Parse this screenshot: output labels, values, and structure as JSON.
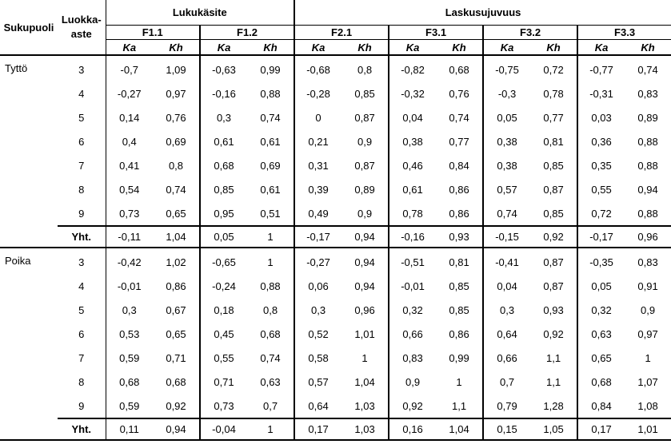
{
  "header": {
    "sukupuoli": "Sukupuoli",
    "luokka_line1": "Luokka-",
    "luokka_line2": "aste",
    "group1": "Lukukäsite",
    "group2": "Laskusujuvuus",
    "factors": [
      "F1.1",
      "F1.2",
      "F2.1",
      "F3.1",
      "F3.2",
      "F3.3"
    ],
    "ka": "Ka",
    "kh": "Kh"
  },
  "groups": [
    {
      "label": "Tyttö",
      "rows": [
        {
          "grade": "3",
          "values": [
            "-0,7",
            "1,09",
            "-0,63",
            "0,99",
            "-0,68",
            "0,8",
            "-0,82",
            "0,68",
            "-0,75",
            "0,72",
            "-0,77",
            "0,74"
          ]
        },
        {
          "grade": "4",
          "values": [
            "-0,27",
            "0,97",
            "-0,16",
            "0,88",
            "-0,28",
            "0,85",
            "-0,32",
            "0,76",
            "-0,3",
            "0,78",
            "-0,31",
            "0,83"
          ]
        },
        {
          "grade": "5",
          "values": [
            "0,14",
            "0,76",
            "0,3",
            "0,74",
            "0",
            "0,87",
            "0,04",
            "0,74",
            "0,05",
            "0,77",
            "0,03",
            "0,89"
          ]
        },
        {
          "grade": "6",
          "values": [
            "0,4",
            "0,69",
            "0,61",
            "0,61",
            "0,21",
            "0,9",
            "0,38",
            "0,77",
            "0,38",
            "0,81",
            "0,36",
            "0,88"
          ]
        },
        {
          "grade": "7",
          "values": [
            "0,41",
            "0,8",
            "0,68",
            "0,69",
            "0,31",
            "0,87",
            "0,46",
            "0,84",
            "0,38",
            "0,85",
            "0,35",
            "0,88"
          ]
        },
        {
          "grade": "8",
          "values": [
            "0,54",
            "0,74",
            "0,85",
            "0,61",
            "0,39",
            "0,89",
            "0,61",
            "0,86",
            "0,57",
            "0,87",
            "0,55",
            "0,94"
          ]
        },
        {
          "grade": "9",
          "values": [
            "0,73",
            "0,65",
            "0,95",
            "0,51",
            "0,49",
            "0,9",
            "0,78",
            "0,86",
            "0,74",
            "0,85",
            "0,72",
            "0,88"
          ]
        }
      ],
      "total": {
        "grade": "Yht.",
        "values": [
          "-0,11",
          "1,04",
          "0,05",
          "1",
          "-0,17",
          "0,94",
          "-0,16",
          "0,93",
          "-0,15",
          "0,92",
          "-0,17",
          "0,96"
        ]
      }
    },
    {
      "label": "Poika",
      "rows": [
        {
          "grade": "3",
          "values": [
            "-0,42",
            "1,02",
            "-0,65",
            "1",
            "-0,27",
            "0,94",
            "-0,51",
            "0,81",
            "-0,41",
            "0,87",
            "-0,35",
            "0,83"
          ]
        },
        {
          "grade": "4",
          "values": [
            "-0,01",
            "0,86",
            "-0,24",
            "0,88",
            "0,06",
            "0,94",
            "-0,01",
            "0,85",
            "0,04",
            "0,87",
            "0,05",
            "0,91"
          ]
        },
        {
          "grade": "5",
          "values": [
            "0,3",
            "0,67",
            "0,18",
            "0,8",
            "0,3",
            "0,96",
            "0,32",
            "0,85",
            "0,3",
            "0,93",
            "0,32",
            "0,9"
          ]
        },
        {
          "grade": "6",
          "values": [
            "0,53",
            "0,65",
            "0,45",
            "0,68",
            "0,52",
            "1,01",
            "0,66",
            "0,86",
            "0,64",
            "0,92",
            "0,63",
            "0,97"
          ]
        },
        {
          "grade": "7",
          "values": [
            "0,59",
            "0,71",
            "0,55",
            "0,74",
            "0,58",
            "1",
            "0,83",
            "0,99",
            "0,66",
            "1,1",
            "0,65",
            "1"
          ]
        },
        {
          "grade": "8",
          "values": [
            "0,68",
            "0,68",
            "0,71",
            "0,63",
            "0,57",
            "1,04",
            "0,9",
            "1",
            "0,7",
            "1,1",
            "0,68",
            "1,07"
          ]
        },
        {
          "grade": "9",
          "values": [
            "0,59",
            "0,92",
            "0,73",
            "0,7",
            "0,64",
            "1,03",
            "0,92",
            "1,1",
            "0,79",
            "1,28",
            "0,84",
            "1,08"
          ]
        }
      ],
      "total": {
        "grade": "Yht.",
        "values": [
          "0,11",
          "0,94",
          "-0,04",
          "1",
          "0,17",
          "1,03",
          "0,16",
          "1,04",
          "0,15",
          "1,05",
          "0,17",
          "1,01"
        ]
      }
    }
  ]
}
